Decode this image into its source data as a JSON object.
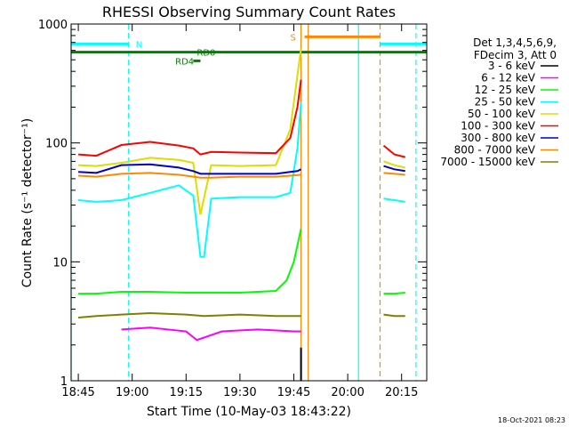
{
  "chart_data": {
    "type": "line",
    "title": "RHESSI Observing Summary Count Rates",
    "xlabel": "Start Time (10-May-03 18:43:22)",
    "ylabel": "Count Rate (s⁻¹ detector⁻¹)",
    "yscale": "log",
    "ylim": [
      1,
      1000
    ],
    "xlim": [
      "18:43",
      "20:22"
    ],
    "x_ticks": [
      "18:45",
      "19:00",
      "19:15",
      "19:30",
      "19:45",
      "20:00",
      "20:15"
    ],
    "y_ticks": [
      "1",
      "10",
      "100",
      "1000"
    ],
    "legend_title": [
      "Det 1,3,4,5,6,9,",
      "FDecim 3, Att 0"
    ],
    "legend_position": "right",
    "timestamp": "18-Oct-2021 08:23",
    "series": [
      {
        "name": "3 - 6 keV",
        "color": "#000000",
        "x": [
          "19:47",
          "19:47"
        ],
        "values": [
          1,
          1.9
        ]
      },
      {
        "name": "6 - 12 keV",
        "color": "#ff00ff",
        "x": [
          "18:57",
          "19:05",
          "19:15",
          "19:18",
          "19:25",
          "19:35",
          "19:45",
          "19:47"
        ],
        "values": [
          2.7,
          2.8,
          2.6,
          2.2,
          2.6,
          2.7,
          2.6,
          2.6
        ]
      },
      {
        "name": "12 - 25 keV",
        "color": "#00ff00",
        "x": [
          "18:45",
          "18:50",
          "18:57",
          "19:05",
          "19:15",
          "19:20",
          "19:30",
          "19:40",
          "19:43",
          "19:45",
          "19:47"
        ],
        "values": [
          5.4,
          5.4,
          5.6,
          5.6,
          5.5,
          5.5,
          5.5,
          5.7,
          7,
          10,
          19
        ],
        "x2": [
          "20:10",
          "20:13",
          "20:16"
        ],
        "values2": [
          5.4,
          5.4,
          5.5
        ]
      },
      {
        "name": "25 - 50 keV",
        "color": "#00ffff",
        "x": [
          "18:45",
          "18:50",
          "18:57",
          "19:05",
          "19:13",
          "19:17",
          "19:19",
          "19:20",
          "19:22",
          "19:30",
          "19:40",
          "19:44",
          "19:46",
          "19:47"
        ],
        "values": [
          33,
          32,
          33,
          38,
          44,
          36,
          11,
          11,
          34,
          35,
          35,
          38,
          90,
          220
        ],
        "x2": [
          "20:10",
          "20:13",
          "20:16"
        ],
        "values2": [
          34,
          33,
          32
        ]
      },
      {
        "name": "50 - 100 keV",
        "color": "#dddd00",
        "x": [
          "18:45",
          "18:50",
          "18:57",
          "19:05",
          "19:13",
          "19:17",
          "19:19",
          "19:22",
          "19:30",
          "19:40",
          "19:44",
          "19:46",
          "19:47"
        ],
        "values": [
          65,
          64,
          68,
          75,
          72,
          68,
          25,
          65,
          64,
          65,
          130,
          370,
          620
        ],
        "x2": [
          "20:10",
          "20:13",
          "20:16"
        ],
        "values2": [
          70,
          65,
          62
        ]
      },
      {
        "name": "100 - 300 keV",
        "color": "#ff0000",
        "x": [
          "18:45",
          "18:50",
          "18:57",
          "19:05",
          "19:13",
          "19:17",
          "19:19",
          "19:22",
          "19:30",
          "19:40",
          "19:44",
          "19:46",
          "19:47"
        ],
        "values": [
          80,
          78,
          96,
          102,
          95,
          90,
          80,
          84,
          83,
          82,
          110,
          200,
          340
        ],
        "x2": [
          "20:10",
          "20:13",
          "20:16"
        ],
        "values2": [
          95,
          80,
          76
        ]
      },
      {
        "name": "300 - 800 keV",
        "color": "#0000cc",
        "x": [
          "18:45",
          "18:50",
          "18:57",
          "19:05",
          "19:13",
          "19:17",
          "19:19",
          "19:22",
          "19:30",
          "19:40",
          "19:44",
          "19:46",
          "19:47"
        ],
        "values": [
          57,
          56,
          65,
          66,
          62,
          58,
          55,
          55,
          55,
          55,
          57,
          58,
          60
        ],
        "x2": [
          "20:10",
          "20:13",
          "20:16"
        ],
        "values2": [
          64,
          60,
          58
        ]
      },
      {
        "name": "800 - 7000 keV",
        "color": "#ff8800",
        "x": [
          "18:45",
          "18:50",
          "18:57",
          "19:05",
          "19:13",
          "19:17",
          "19:19",
          "19:22",
          "19:30",
          "19:40",
          "19:44",
          "19:47"
        ],
        "values": [
          53,
          52,
          55,
          56,
          54,
          52,
          51,
          51,
          52,
          52,
          53,
          54
        ],
        "x2": [
          "20:10",
          "20:13",
          "20:16"
        ],
        "values2": [
          56,
          55,
          54
        ]
      },
      {
        "name": "7000 - 15000 keV",
        "color": "#808000",
        "x": [
          "18:45",
          "18:50",
          "18:57",
          "19:05",
          "19:15",
          "19:20",
          "19:30",
          "19:40",
          "19:45",
          "19:47"
        ],
        "values": [
          3.4,
          3.5,
          3.6,
          3.7,
          3.6,
          3.5,
          3.6,
          3.5,
          3.5,
          3.5
        ],
        "x2": [
          "20:10",
          "20:13",
          "20:16"
        ],
        "values2": [
          3.6,
          3.5,
          3.5
        ]
      }
    ],
    "flag_bars": [
      {
        "label": "N",
        "color": "#00ffff",
        "y": 680,
        "segments": [
          [
            "18:43",
            "18:59"
          ],
          [
            "20:09",
            "20:22"
          ]
        ],
        "label_at": "19:01"
      },
      {
        "label": "RD0",
        "color": "#008000",
        "y": 580,
        "segments": [
          [
            "18:43",
            "20:22"
          ]
        ],
        "label_at": "19:18"
      },
      {
        "label": "RD4",
        "color": "#008000",
        "y": 490,
        "segments": [
          [
            "19:17",
            "19:19"
          ]
        ],
        "label_at": "19:12"
      },
      {
        "label": "S",
        "color": "#ff8800",
        "y": 780,
        "segments": [
          [
            "19:48",
            "20:09"
          ]
        ],
        "label_at": "19:44"
      }
    ],
    "vlines": [
      {
        "x": "18:43",
        "color": "#00ffff",
        "style": "solid"
      },
      {
        "x": "18:59",
        "color": "#00ffff",
        "style": "dashed"
      },
      {
        "x": "19:47",
        "color": "#ff8800",
        "style": "solid"
      },
      {
        "x": "19:49",
        "color": "#ff8800",
        "style": "solid"
      },
      {
        "x": "20:03",
        "color": "#00ffff",
        "style": "solid"
      },
      {
        "x": "20:09",
        "color": "#ff8800",
        "style": "dashed"
      },
      {
        "x": "20:19",
        "color": "#00ffff",
        "style": "dashed"
      }
    ]
  }
}
